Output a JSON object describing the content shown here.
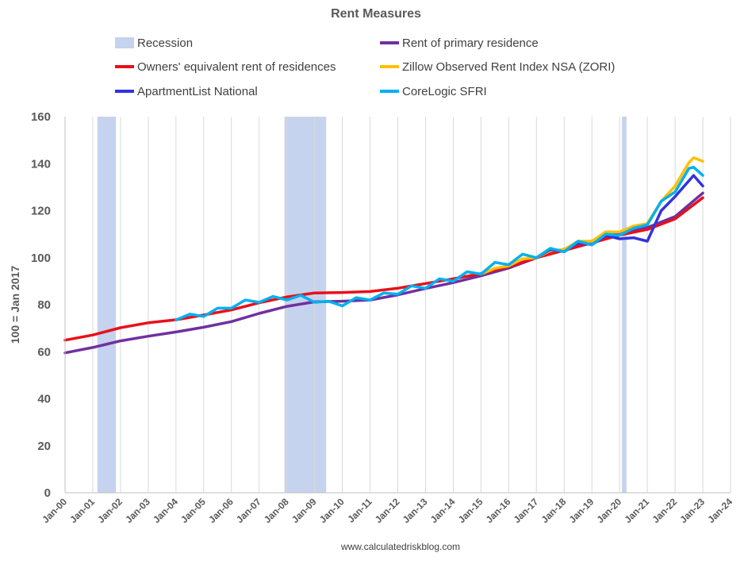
{
  "chart_data": {
    "type": "line",
    "title": "Rent Measures",
    "ylabel": "100 = Jan 2017",
    "xlabel": "",
    "ylim": [
      0,
      160
    ],
    "xlim": [
      "Jan-00",
      "Jan-24"
    ],
    "yticks": [
      0,
      20,
      40,
      60,
      80,
      100,
      120,
      140,
      160
    ],
    "xticks": [
      "Jan-00",
      "Jan-01",
      "Jan-02",
      "Jan-03",
      "Jan-04",
      "Jan-05",
      "Jan-06",
      "Jan-07",
      "Jan-08",
      "Jan-09",
      "Jan-10",
      "Jan-11",
      "Jan-12",
      "Jan-13",
      "Jan-14",
      "Jan-15",
      "Jan-16",
      "Jan-17",
      "Jan-18",
      "Jan-19",
      "Jan-20",
      "Jan-21",
      "Jan-22",
      "Jan-23",
      "Jan-24"
    ],
    "grid": "vertical-lines",
    "legend_position": "top",
    "source": "www.calculatedriskblog.com",
    "recessions": {
      "name": "Recession",
      "color": "#c5d3ee",
      "periods": [
        [
          "Mar-01",
          "Nov-01"
        ],
        [
          "Dec-07",
          "Jun-09"
        ],
        [
          "Feb-20",
          "Apr-20"
        ]
      ]
    },
    "series": [
      {
        "name": "Rent of primary residence",
        "color": "#7030a0",
        "points": [
          [
            "Jan-00",
            59.5
          ],
          [
            "Jan-01",
            61.8
          ],
          [
            "Jan-02",
            64.6
          ],
          [
            "Jan-03",
            66.6
          ],
          [
            "Jan-04",
            68.4
          ],
          [
            "Jan-05",
            70.4
          ],
          [
            "Jan-06",
            72.8
          ],
          [
            "Jan-07",
            76.3
          ],
          [
            "Jan-08",
            79.3
          ],
          [
            "Jan-09",
            81.2
          ],
          [
            "Jan-10",
            81.5
          ],
          [
            "Jan-11",
            82.0
          ],
          [
            "Jan-12",
            84.2
          ],
          [
            "Jan-13",
            86.9
          ],
          [
            "Jan-14",
            89.4
          ],
          [
            "Jan-15",
            92.3
          ],
          [
            "Jan-16",
            95.6
          ],
          [
            "Jan-17",
            100.0
          ],
          [
            "Jan-18",
            103.6
          ],
          [
            "Jan-19",
            107.1
          ],
          [
            "Jan-20",
            110.8
          ],
          [
            "Jan-21",
            112.8
          ],
          [
            "Jan-22",
            117.5
          ],
          [
            "Jan-23",
            127.5
          ]
        ]
      },
      {
        "name": "Owners' equivalent rent of residences",
        "color": "#e8101a",
        "points": [
          [
            "Jan-00",
            64.9
          ],
          [
            "Jan-01",
            67.1
          ],
          [
            "Jan-02",
            70.2
          ],
          [
            "Jan-03",
            72.3
          ],
          [
            "Jan-04",
            73.6
          ],
          [
            "Jan-05",
            75.6
          ],
          [
            "Jan-06",
            77.8
          ],
          [
            "Jan-07",
            80.8
          ],
          [
            "Jan-08",
            83.3
          ],
          [
            "Jan-09",
            85.0
          ],
          [
            "Jan-10",
            85.2
          ],
          [
            "Jan-11",
            85.6
          ],
          [
            "Jan-12",
            87.0
          ],
          [
            "Jan-13",
            89.0
          ],
          [
            "Jan-14",
            91.0
          ],
          [
            "Jan-15",
            93.2
          ],
          [
            "Jan-16",
            96.2
          ],
          [
            "Jan-17",
            100.0
          ],
          [
            "Jan-18",
            103.1
          ],
          [
            "Jan-19",
            106.3
          ],
          [
            "Jan-20",
            109.6
          ],
          [
            "Jan-21",
            112.0
          ],
          [
            "Jan-22",
            116.5
          ],
          [
            "Jan-23",
            125.5
          ]
        ]
      },
      {
        "name": "Zillow Observed Rent Index NSA (ZORI)",
        "color": "#ffc000",
        "points": [
          [
            "Jan-15",
            93.0
          ],
          [
            "Jul-15",
            95.5
          ],
          [
            "Jan-16",
            96.5
          ],
          [
            "Jul-16",
            99.5
          ],
          [
            "Jan-17",
            100.0
          ],
          [
            "Jul-17",
            103.0
          ],
          [
            "Jan-18",
            103.5
          ],
          [
            "Jul-18",
            107.0
          ],
          [
            "Jan-19",
            107.0
          ],
          [
            "Jul-19",
            111.0
          ],
          [
            "Jan-20",
            111.0
          ],
          [
            "Jul-20",
            113.5
          ],
          [
            "Jan-21",
            114.5
          ],
          [
            "Jul-21",
            124.0
          ],
          [
            "Jan-22",
            130.5
          ],
          [
            "Jul-22",
            140.5
          ],
          [
            "Sep-22",
            142.5
          ],
          [
            "Jan-23",
            141.0
          ]
        ]
      },
      {
        "name": "ApartmentList National",
        "color": "#3333dd",
        "points": [
          [
            "Jan-17",
            100.0
          ],
          [
            "Jul-17",
            103.5
          ],
          [
            "Jan-18",
            102.5
          ],
          [
            "Jul-18",
            106.5
          ],
          [
            "Jan-19",
            105.5
          ],
          [
            "Jul-19",
            109.5
          ],
          [
            "Jan-20",
            108.0
          ],
          [
            "Jul-20",
            108.5
          ],
          [
            "Jan-21",
            107.0
          ],
          [
            "Jul-21",
            120.0
          ],
          [
            "Jan-22",
            126.0
          ],
          [
            "Sep-22",
            135.0
          ],
          [
            "Jan-23",
            130.5
          ]
        ]
      },
      {
        "name": "CoreLogic SFRI",
        "color": "#00b0f0",
        "points": [
          [
            "Jan-04",
            73.5
          ],
          [
            "Jul-04",
            76.0
          ],
          [
            "Jan-05",
            75.0
          ],
          [
            "Jul-05",
            78.5
          ],
          [
            "Jan-06",
            78.5
          ],
          [
            "Jul-06",
            82.0
          ],
          [
            "Jan-07",
            81.0
          ],
          [
            "Jul-07",
            83.5
          ],
          [
            "Jan-08",
            82.0
          ],
          [
            "Jul-08",
            84.0
          ],
          [
            "Jan-09",
            81.0
          ],
          [
            "Jul-09",
            81.5
          ],
          [
            "Jan-10",
            79.5
          ],
          [
            "Jul-10",
            83.0
          ],
          [
            "Jan-11",
            82.0
          ],
          [
            "Jul-11",
            85.0
          ],
          [
            "Jan-12",
            84.5
          ],
          [
            "Jul-12",
            88.0
          ],
          [
            "Jan-13",
            87.0
          ],
          [
            "Jul-13",
            91.0
          ],
          [
            "Jan-14",
            90.0
          ],
          [
            "Jul-14",
            94.0
          ],
          [
            "Jan-15",
            93.0
          ],
          [
            "Jul-15",
            98.0
          ],
          [
            "Jan-16",
            97.0
          ],
          [
            "Jul-16",
            101.5
          ],
          [
            "Jan-17",
            100.0
          ],
          [
            "Jul-17",
            104.0
          ],
          [
            "Jan-18",
            102.5
          ],
          [
            "Jul-18",
            107.0
          ],
          [
            "Jan-19",
            105.5
          ],
          [
            "Jul-19",
            110.0
          ],
          [
            "Jan-20",
            109.5
          ],
          [
            "Jul-20",
            112.5
          ],
          [
            "Jan-21",
            114.0
          ],
          [
            "Jul-21",
            124.0
          ],
          [
            "Jan-22",
            128.0
          ],
          [
            "Jul-22",
            138.0
          ],
          [
            "Sep-22",
            138.5
          ],
          [
            "Jan-23",
            135.0
          ]
        ]
      }
    ]
  }
}
